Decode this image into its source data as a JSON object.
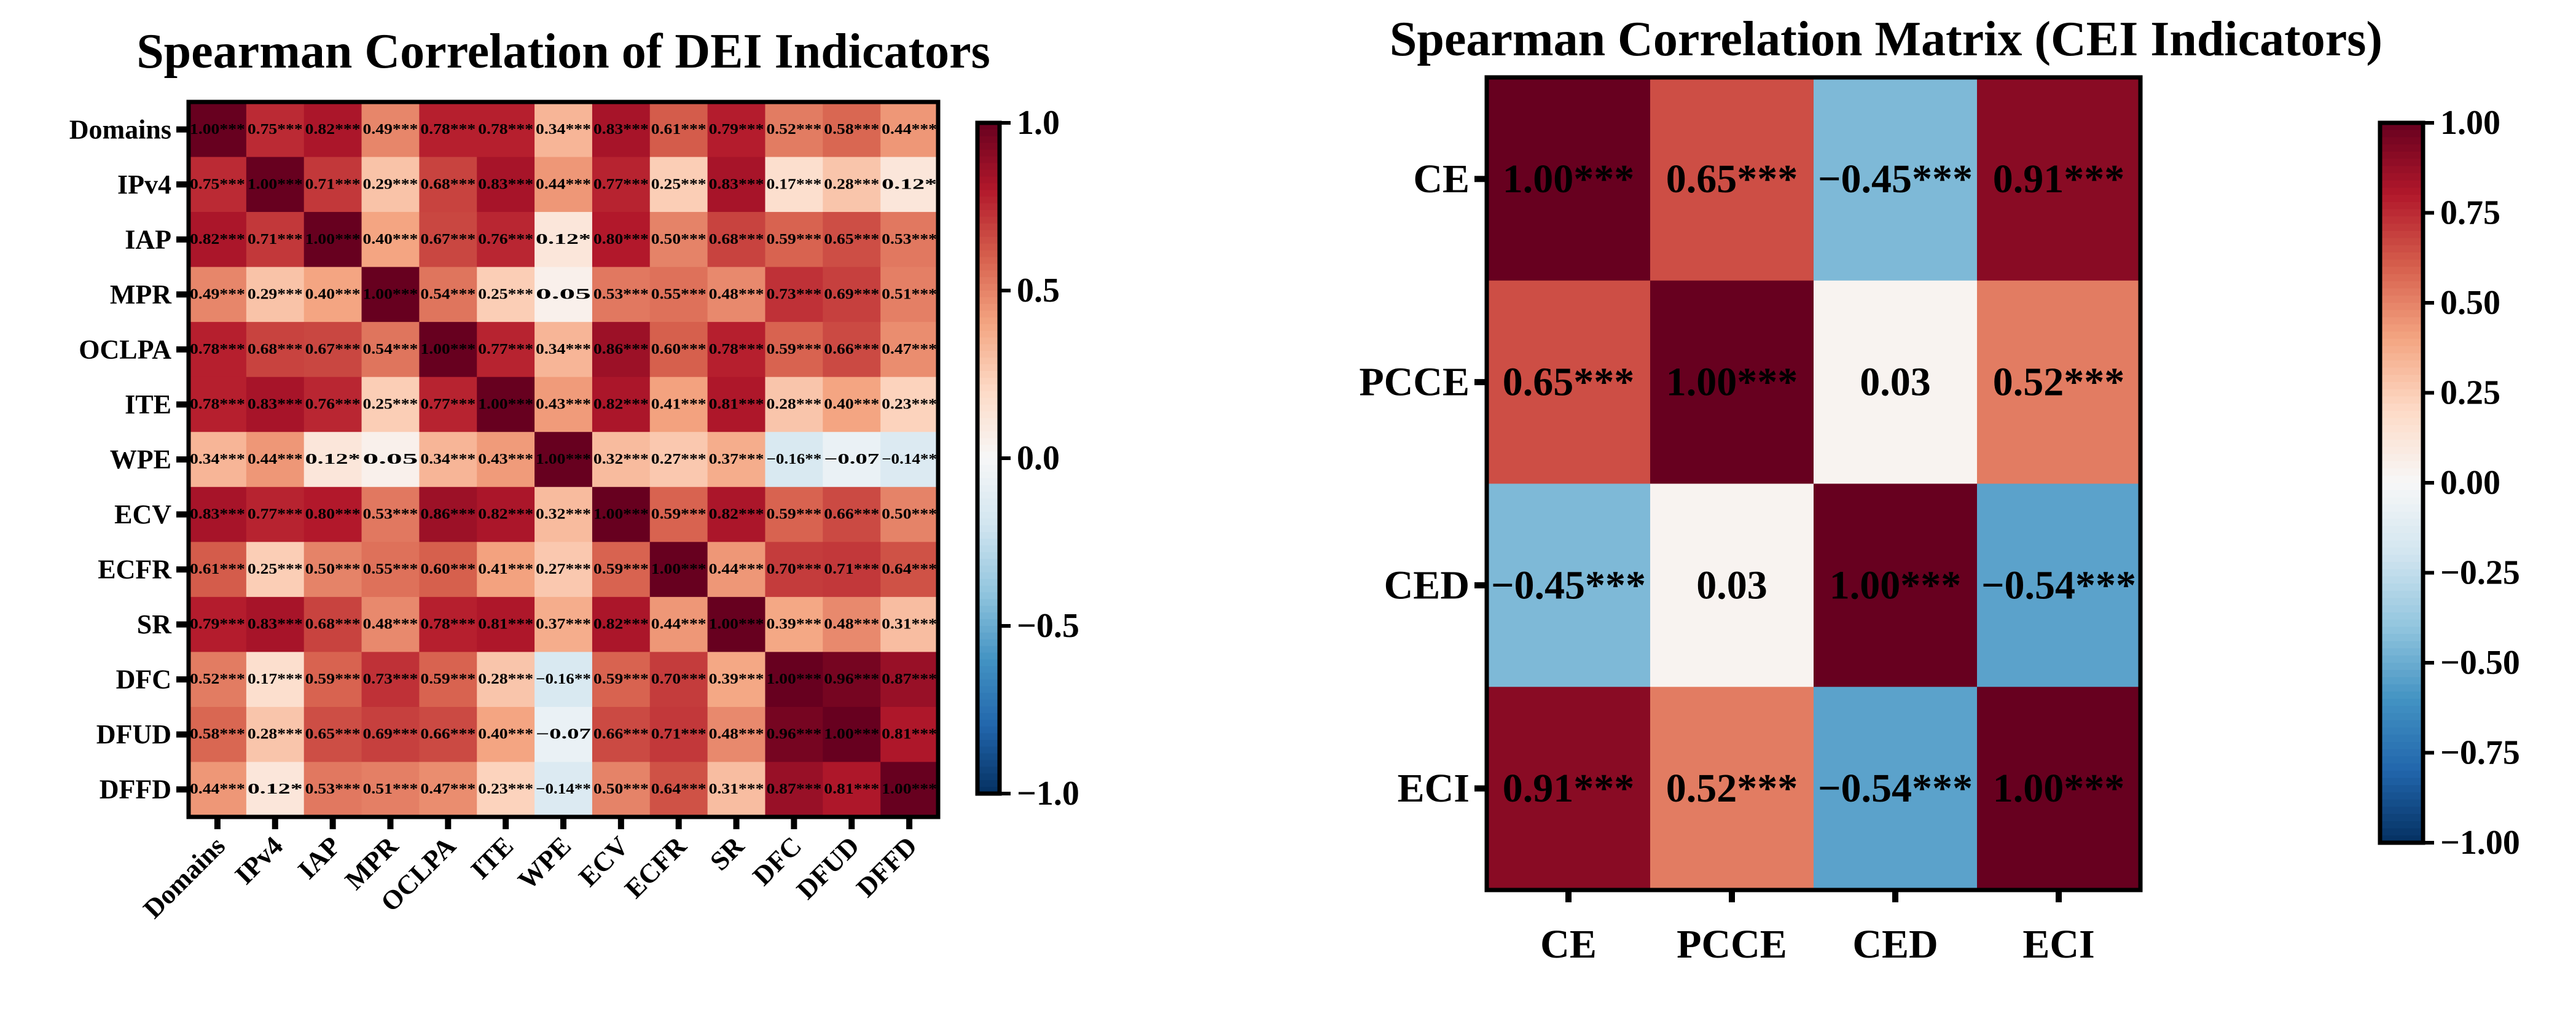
{
  "chart_data": [
    {
      "type": "heatmap",
      "title": "Spearman Correlation of DEI Indicators",
      "labels": [
        "Domains",
        "IPv4",
        "IAP",
        "MPR",
        "OCLPA",
        "ITE",
        "WPE",
        "ECV",
        "ECFR",
        "SR",
        "DFC",
        "DFUD",
        "DFFD"
      ],
      "annotations": [
        [
          "1.00***",
          "0.75***",
          "0.82***",
          "0.49***",
          "0.78***",
          "0.78***",
          "0.34***",
          "0.83***",
          "0.61***",
          "0.79***",
          "0.52***",
          "0.58***",
          "0.44***"
        ],
        [
          "0.75***",
          "1.00***",
          "0.71***",
          "0.29***",
          "0.68***",
          "0.83***",
          "0.44***",
          "0.77***",
          "0.25***",
          "0.83***",
          "0.17***",
          "0.28***",
          "0.12*"
        ],
        [
          "0.82***",
          "0.71***",
          "1.00***",
          "0.40***",
          "0.67***",
          "0.76***",
          "0.12*",
          "0.80***",
          "0.50***",
          "0.68***",
          "0.59***",
          "0.65***",
          "0.53***"
        ],
        [
          "0.49***",
          "0.29***",
          "0.40***",
          "1.00***",
          "0.54***",
          "0.25***",
          "0.05",
          "0.53***",
          "0.55***",
          "0.48***",
          "0.73***",
          "0.69***",
          "0.51***"
        ],
        [
          "0.78***",
          "0.68***",
          "0.67***",
          "0.54***",
          "1.00***",
          "0.77***",
          "0.34***",
          "0.86***",
          "0.60***",
          "0.78***",
          "0.59***",
          "0.66***",
          "0.47***"
        ],
        [
          "0.78***",
          "0.83***",
          "0.76***",
          "0.25***",
          "0.77***",
          "1.00***",
          "0.43***",
          "0.82***",
          "0.41***",
          "0.81***",
          "0.28***",
          "0.40***",
          "0.23***"
        ],
        [
          "0.34***",
          "0.44***",
          "0.12*",
          "0.05",
          "0.34***",
          "0.43***",
          "1.00***",
          "0.32***",
          "0.27***",
          "0.37***",
          "−0.16**",
          "−0.07",
          "−0.14**"
        ],
        [
          "0.83***",
          "0.77***",
          "0.80***",
          "0.53***",
          "0.86***",
          "0.82***",
          "0.32***",
          "1.00***",
          "0.59***",
          "0.82***",
          "0.59***",
          "0.66***",
          "0.50***"
        ],
        [
          "0.61***",
          "0.25***",
          "0.50***",
          "0.55***",
          "0.60***",
          "0.41***",
          "0.27***",
          "0.59***",
          "1.00***",
          "0.44***",
          "0.70***",
          "0.71***",
          "0.64***"
        ],
        [
          "0.79***",
          "0.83***",
          "0.68***",
          "0.48***",
          "0.78***",
          "0.81***",
          "0.37***",
          "0.82***",
          "0.44***",
          "1.00***",
          "0.39***",
          "0.48***",
          "0.31***"
        ],
        [
          "0.52***",
          "0.17***",
          "0.59***",
          "0.73***",
          "0.59***",
          "0.28***",
          "−0.16**",
          "0.59***",
          "0.70***",
          "0.39***",
          "1.00***",
          "0.96***",
          "0.87***"
        ],
        [
          "0.58***",
          "0.28***",
          "0.65***",
          "0.69***",
          "0.66***",
          "0.40***",
          "−0.07",
          "0.66***",
          "0.71***",
          "0.48***",
          "0.96***",
          "1.00***",
          "0.81***"
        ],
        [
          "0.44***",
          "0.12*",
          "0.53***",
          "0.51***",
          "0.47***",
          "0.23***",
          "−0.14**",
          "0.50***",
          "0.64***",
          "0.31***",
          "0.87***",
          "0.81***",
          "1.00***"
        ]
      ],
      "colorbar": {
        "range": [
          -1,
          1
        ],
        "ticks": [
          -1.0,
          -0.5,
          0.0,
          0.5,
          1.0
        ],
        "tick_labels": [
          "−1.0",
          "−0.5",
          "0.0",
          "0.5",
          "1.0"
        ]
      },
      "colormap": "RdBu_r"
    },
    {
      "type": "heatmap",
      "title": "Spearman Correlation Matrix (CEI Indicators)",
      "labels": [
        "CE",
        "PCCE",
        "CED",
        "ECI"
      ],
      "annotations": [
        [
          "1.00***",
          "0.65***",
          "−0.45***",
          "0.91***"
        ],
        [
          "0.65***",
          "1.00***",
          "0.03",
          "0.52***"
        ],
        [
          "−0.45***",
          "0.03",
          "1.00***",
          "−0.54***"
        ],
        [
          "0.91***",
          "0.52***",
          "−0.54***",
          "1.00***"
        ]
      ],
      "colorbar": {
        "range": [
          -1,
          1
        ],
        "ticks": [
          -1.0,
          -0.75,
          -0.5,
          -0.25,
          0.0,
          0.25,
          0.5,
          0.75,
          1.0
        ],
        "tick_labels": [
          "−1.00",
          "−0.75",
          "−0.50",
          "−0.25",
          "0.00",
          "0.25",
          "0.50",
          "0.75",
          "1.00"
        ]
      },
      "colormap": "RdBu_r"
    }
  ]
}
